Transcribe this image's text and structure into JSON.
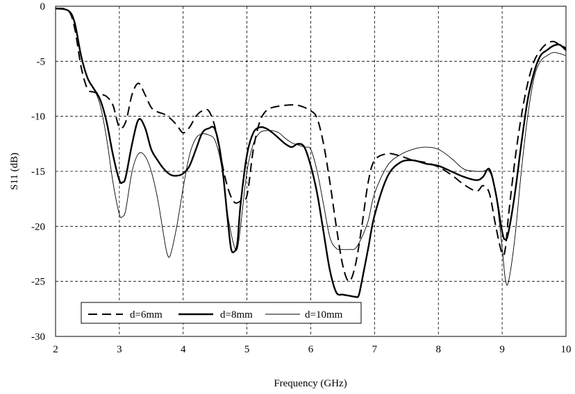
{
  "chart_data": {
    "type": "line",
    "title": "",
    "xlabel": "Frequency (GHz)",
    "ylabel": "S11 (dB)",
    "xlim": [
      2,
      10
    ],
    "ylim": [
      -30,
      0
    ],
    "xticks": [
      "2",
      "3",
      "4",
      "5",
      "6",
      "7",
      "8",
      "9",
      "10"
    ],
    "yticks": [
      "0",
      "-5",
      "-10",
      "-15",
      "-20",
      "-25",
      "-30"
    ],
    "grid": true,
    "legend_position": "bottom-left",
    "series": [
      {
        "name": "d=6mm",
        "style": "dashed",
        "width": 2,
        "color": "#000000",
        "x": [
          2.0,
          2.2,
          2.3,
          2.4,
          2.5,
          2.6,
          2.7,
          2.8,
          2.9,
          3.0,
          3.1,
          3.2,
          3.3,
          3.4,
          3.5,
          3.6,
          3.7,
          3.8,
          3.9,
          4.0,
          4.1,
          4.2,
          4.3,
          4.4,
          4.5,
          4.6,
          4.7,
          4.8,
          4.9,
          5.0,
          5.1,
          5.2,
          5.3,
          5.4,
          5.6,
          5.8,
          6.0,
          6.1,
          6.2,
          6.3,
          6.4,
          6.5,
          6.6,
          6.7,
          6.8,
          6.9,
          7.0,
          7.2,
          7.4,
          7.6,
          7.8,
          8.0,
          8.2,
          8.4,
          8.6,
          8.7,
          8.8,
          8.9,
          9.0,
          9.05,
          9.1,
          9.2,
          9.3,
          9.4,
          9.5,
          9.6,
          9.7,
          9.8,
          9.9,
          10.0
        ],
        "values": [
          -0.2,
          -0.4,
          -2.0,
          -5.5,
          -7.5,
          -7.8,
          -8.0,
          -8.2,
          -9.0,
          -11.0,
          -10.5,
          -8.0,
          -7.0,
          -8.0,
          -9.2,
          -9.6,
          -9.8,
          -10.2,
          -10.8,
          -11.5,
          -11.0,
          -10.0,
          -9.5,
          -9.5,
          -11.0,
          -14.0,
          -16.5,
          -17.8,
          -17.7,
          -17.2,
          -13.0,
          -10.5,
          -9.5,
          -9.2,
          -9.0,
          -9.0,
          -9.5,
          -10.2,
          -12.5,
          -16.0,
          -20.0,
          -23.5,
          -25.0,
          -23.5,
          -20.0,
          -16.0,
          -14.0,
          -13.4,
          -13.6,
          -14.0,
          -14.2,
          -14.6,
          -15.3,
          -16.2,
          -16.8,
          -16.3,
          -17.0,
          -20.0,
          -22.5,
          -22.0,
          -19.0,
          -14.0,
          -10.0,
          -7.0,
          -5.0,
          -4.0,
          -3.4,
          -3.2,
          -3.5,
          -3.8
        ]
      },
      {
        "name": "d=8mm",
        "style": "solid",
        "width": 2.4,
        "color": "#000000",
        "x": [
          2.0,
          2.2,
          2.3,
          2.4,
          2.5,
          2.6,
          2.7,
          2.8,
          2.9,
          3.0,
          3.05,
          3.1,
          3.2,
          3.3,
          3.4,
          3.5,
          3.6,
          3.7,
          3.8,
          3.9,
          4.0,
          4.1,
          4.2,
          4.3,
          4.4,
          4.5,
          4.6,
          4.7,
          4.75,
          4.8,
          4.85,
          4.9,
          5.0,
          5.1,
          5.2,
          5.3,
          5.4,
          5.5,
          5.6,
          5.7,
          5.8,
          5.9,
          6.0,
          6.1,
          6.2,
          6.3,
          6.4,
          6.5,
          6.6,
          6.7,
          6.75,
          6.8,
          6.9,
          7.0,
          7.2,
          7.4,
          7.6,
          7.8,
          8.0,
          8.2,
          8.4,
          8.6,
          8.7,
          8.8,
          8.9,
          9.0,
          9.05,
          9.1,
          9.2,
          9.3,
          9.4,
          9.5,
          9.6,
          9.7,
          9.8,
          9.9,
          10.0
        ],
        "values": [
          -0.2,
          -0.4,
          -1.5,
          -4.5,
          -6.5,
          -7.5,
          -8.5,
          -10.5,
          -13.5,
          -15.8,
          -16.0,
          -15.5,
          -12.5,
          -10.3,
          -11.0,
          -13.0,
          -14.0,
          -14.8,
          -15.3,
          -15.4,
          -15.2,
          -14.5,
          -13.0,
          -11.5,
          -11.1,
          -11.2,
          -14.0,
          -19.5,
          -22.0,
          -22.3,
          -21.5,
          -18.0,
          -13.5,
          -11.5,
          -11.0,
          -11.1,
          -11.5,
          -12.0,
          -12.5,
          -12.8,
          -12.5,
          -12.8,
          -14.5,
          -17.0,
          -20.5,
          -24.0,
          -26.0,
          -26.2,
          -26.3,
          -26.4,
          -26.3,
          -25.0,
          -22.0,
          -19.0,
          -15.5,
          -14.2,
          -14.0,
          -14.3,
          -14.5,
          -15.0,
          -15.5,
          -15.8,
          -15.5,
          -14.8,
          -17.0,
          -20.5,
          -21.2,
          -20.5,
          -17.0,
          -12.5,
          -8.5,
          -6.0,
          -4.5,
          -4.0,
          -3.6,
          -3.5,
          -4.0
        ]
      },
      {
        "name": "d=10mm",
        "style": "solid",
        "width": 0.9,
        "color": "#000000",
        "x": [
          2.0,
          2.2,
          2.3,
          2.4,
          2.5,
          2.6,
          2.7,
          2.8,
          2.9,
          3.0,
          3.05,
          3.1,
          3.2,
          3.3,
          3.4,
          3.5,
          3.6,
          3.7,
          3.75,
          3.8,
          3.9,
          4.0,
          4.1,
          4.2,
          4.3,
          4.4,
          4.5,
          4.6,
          4.7,
          4.8,
          4.85,
          4.9,
          5.0,
          5.1,
          5.2,
          5.3,
          5.4,
          5.5,
          5.6,
          5.7,
          5.8,
          5.9,
          6.0,
          6.1,
          6.2,
          6.3,
          6.4,
          6.5,
          6.6,
          6.7,
          6.8,
          6.9,
          7.0,
          7.2,
          7.4,
          7.6,
          7.8,
          8.0,
          8.2,
          8.4,
          8.6,
          8.7,
          8.8,
          8.9,
          9.0,
          9.05,
          9.1,
          9.2,
          9.3,
          9.4,
          9.5,
          9.6,
          9.7,
          9.8,
          9.9,
          10.0
        ],
        "values": [
          -0.2,
          -0.4,
          -1.5,
          -4.5,
          -6.5,
          -7.5,
          -9.0,
          -12.0,
          -16.0,
          -18.9,
          -19.1,
          -18.5,
          -15.0,
          -13.4,
          -13.6,
          -15.0,
          -17.5,
          -21.0,
          -22.5,
          -22.6,
          -20.0,
          -16.5,
          -13.5,
          -12.0,
          -11.6,
          -11.7,
          -12.2,
          -14.5,
          -19.0,
          -21.8,
          -22.0,
          -20.0,
          -15.0,
          -12.5,
          -11.5,
          -11.3,
          -11.3,
          -11.5,
          -12.0,
          -12.4,
          -12.6,
          -12.8,
          -13.0,
          -15.0,
          -18.0,
          -21.0,
          -22.0,
          -22.1,
          -22.1,
          -22.0,
          -21.0,
          -19.5,
          -17.0,
          -14.5,
          -13.5,
          -13.0,
          -12.8,
          -13.0,
          -13.8,
          -14.8,
          -15.0,
          -15.0,
          -15.0,
          -17.0,
          -22.0,
          -24.8,
          -25.0,
          -21.0,
          -15.0,
          -10.0,
          -6.5,
          -5.0,
          -4.5,
          -4.2,
          -4.3,
          -4.5
        ]
      }
    ]
  }
}
